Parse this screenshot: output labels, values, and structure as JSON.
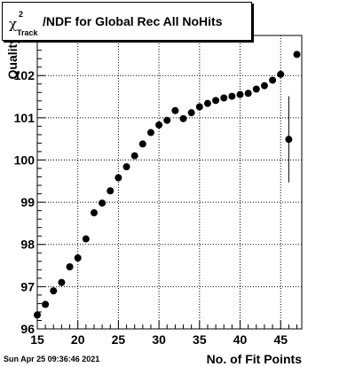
{
  "title": {
    "chi_symbol": "χ",
    "superscript": "2",
    "subscript": "Track",
    "text": "/NDF for Global Rec All NoHits"
  },
  "timestamp": "Sun Apr 25 09:36:46 2021",
  "chart_data": {
    "type": "scatter",
    "title": "χ2Track/NDF for Global Rec All NoHits",
    "xlabel": "No. of Fit Points",
    "ylabel": "Quality",
    "xlim": [
      15,
      47.6
    ],
    "ylim": [
      96,
      102.95
    ],
    "x_ticks": [
      15,
      20,
      25,
      30,
      35,
      40,
      45
    ],
    "y_ticks": [
      96,
      97,
      98,
      99,
      100,
      101,
      102
    ],
    "y_tick_labels": [
      "96",
      "97",
      "98",
      "99",
      "100",
      "101",
      "102"
    ],
    "grid": true,
    "marker_color": "#000000",
    "points": [
      {
        "x": 15,
        "y": 96.33
      },
      {
        "x": 16,
        "y": 96.58
      },
      {
        "x": 17,
        "y": 96.9
      },
      {
        "x": 18,
        "y": 97.1
      },
      {
        "x": 19,
        "y": 97.47
      },
      {
        "x": 20,
        "y": 97.68
      },
      {
        "x": 21,
        "y": 98.13
      },
      {
        "x": 22,
        "y": 98.75
      },
      {
        "x": 23,
        "y": 98.98
      },
      {
        "x": 24,
        "y": 99.27
      },
      {
        "x": 25,
        "y": 99.58
      },
      {
        "x": 26,
        "y": 99.84
      },
      {
        "x": 27,
        "y": 100.1
      },
      {
        "x": 28,
        "y": 100.38
      },
      {
        "x": 29,
        "y": 100.65
      },
      {
        "x": 30,
        "y": 100.83
      },
      {
        "x": 31,
        "y": 100.94
      },
      {
        "x": 32,
        "y": 101.17
      },
      {
        "x": 33,
        "y": 100.98
      },
      {
        "x": 34,
        "y": 101.12
      },
      {
        "x": 35,
        "y": 101.26
      },
      {
        "x": 36,
        "y": 101.34
      },
      {
        "x": 37,
        "y": 101.41
      },
      {
        "x": 38,
        "y": 101.47
      },
      {
        "x": 39,
        "y": 101.51
      },
      {
        "x": 40,
        "y": 101.55
      },
      {
        "x": 41,
        "y": 101.58
      },
      {
        "x": 42,
        "y": 101.68
      },
      {
        "x": 43,
        "y": 101.76
      },
      {
        "x": 44,
        "y": 101.89
      },
      {
        "x": 45,
        "y": 102.03
      },
      {
        "x": 46,
        "y": 100.49,
        "err": 1.02
      },
      {
        "x": 47,
        "y": 102.5
      }
    ]
  }
}
